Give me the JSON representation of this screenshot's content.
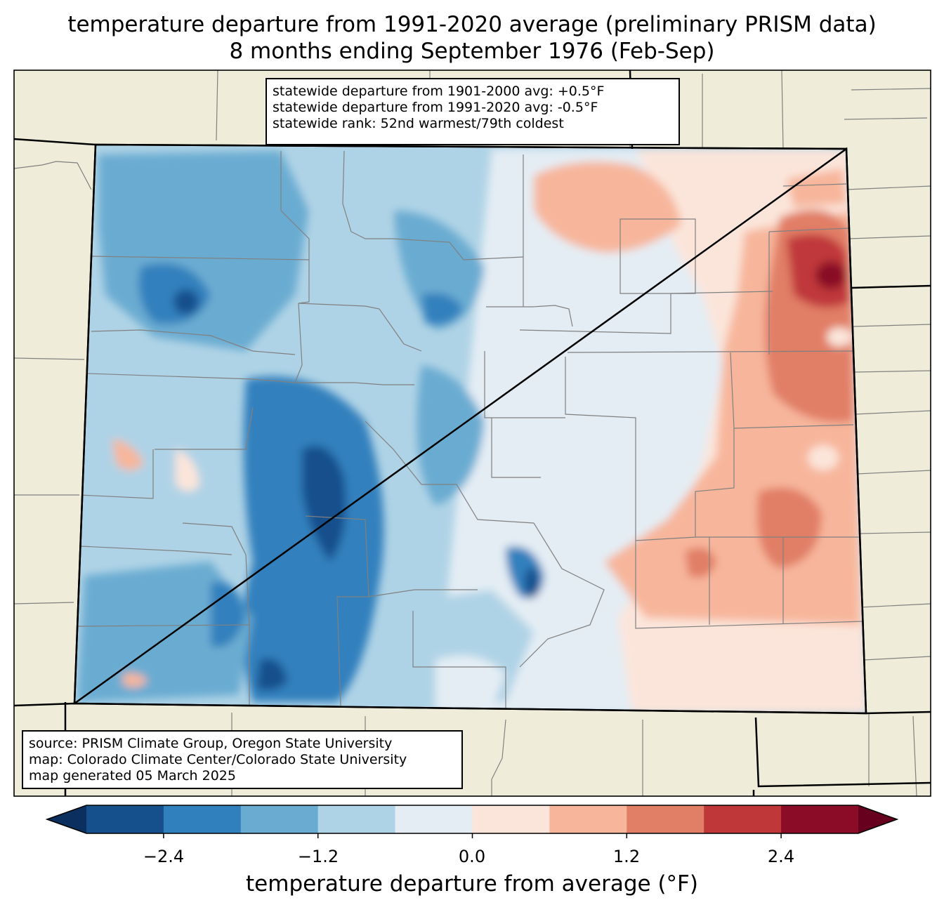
{
  "title": {
    "line1": "temperature departure from 1991-2020 average (preliminary PRISM data)",
    "line2": "8 months ending September 1976 (Feb-Sep)"
  },
  "stats": {
    "line1": "statewide departure from 1901-2000 avg: +0.5°F",
    "line2": "statewide departure from 1991-2020 avg: -0.5°F",
    "line3": "statewide rank: 52nd warmest/79th coldest"
  },
  "credits": {
    "line1": "source: PRISM Climate Group, Oregon State University",
    "line2": "map: Colorado Climate Center/Colorado State University",
    "line3": "map generated 05 March 2025"
  },
  "colorbar": {
    "label": "temperature departure from average (°F)",
    "ticks": [
      "−2.4",
      "−1.2",
      "0.0",
      "1.2",
      "2.4"
    ],
    "levels": [
      -3.0,
      -2.4,
      -1.8,
      -1.2,
      -0.6,
      0.0,
      0.6,
      1.2,
      1.8,
      2.4,
      3.0
    ],
    "colors": [
      "#154f8c",
      "#3080bd",
      "#6aacd1",
      "#afd3e6",
      "#e4edf4",
      "#fbe5da",
      "#f7b69b",
      "#e17e66",
      "#c0373a",
      "#8a0c26"
    ],
    "under_color": "#0b3060",
    "over_color": "#67001f"
  },
  "colors": {
    "land": "#efedda",
    "state_border": "#000000",
    "county_border": "#808080"
  }
}
